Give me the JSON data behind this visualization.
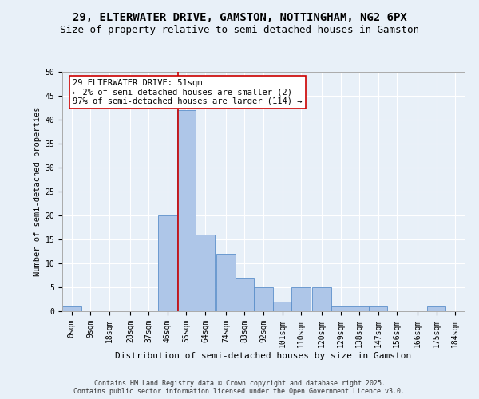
{
  "title1": "29, ELTERWATER DRIVE, GAMSTON, NOTTINGHAM, NG2 6PX",
  "title2": "Size of property relative to semi-detached houses in Gamston",
  "xlabel": "Distribution of semi-detached houses by size in Gamston",
  "ylabel": "Number of semi-detached properties",
  "bin_centers": [
    0,
    9,
    18,
    28,
    37,
    46,
    55,
    64,
    74,
    83,
    92,
    101,
    110,
    120,
    129,
    138,
    147,
    156,
    166,
    175,
    184
  ],
  "bin_labels": [
    "0sqm",
    "9sqm",
    "18sqm",
    "28sqm",
    "37sqm",
    "46sqm",
    "55sqm",
    "64sqm",
    "74sqm",
    "83sqm",
    "92sqm",
    "101sqm",
    "110sqm",
    "120sqm",
    "129sqm",
    "138sqm",
    "147sqm",
    "156sqm",
    "166sqm",
    "175sqm",
    "184sqm"
  ],
  "counts": [
    1,
    0,
    0,
    0,
    0,
    20,
    42,
    16,
    12,
    7,
    5,
    2,
    5,
    5,
    1,
    1,
    1,
    0,
    0,
    1,
    0
  ],
  "bar_color": "#aec6e8",
  "bar_edge_color": "#5b8fca",
  "vline_x": 51,
  "vline_color": "#cc0000",
  "annotation_text": "29 ELTERWATER DRIVE: 51sqm\n← 2% of semi-detached houses are smaller (2)\n97% of semi-detached houses are larger (114) →",
  "annotation_box_color": "#ffffff",
  "annotation_box_edge": "#cc0000",
  "background_color": "#e8f0f8",
  "plot_bg_color": "#e8f0f8",
  "ylim": [
    0,
    50
  ],
  "yticks": [
    0,
    5,
    10,
    15,
    20,
    25,
    30,
    35,
    40,
    45,
    50
  ],
  "footer": "Contains HM Land Registry data © Crown copyright and database right 2025.\nContains public sector information licensed under the Open Government Licence v3.0.",
  "title1_fontsize": 10,
  "title2_fontsize": 9,
  "xlabel_fontsize": 8,
  "ylabel_fontsize": 7.5,
  "tick_fontsize": 7,
  "annotation_fontsize": 7.5,
  "footer_fontsize": 6
}
